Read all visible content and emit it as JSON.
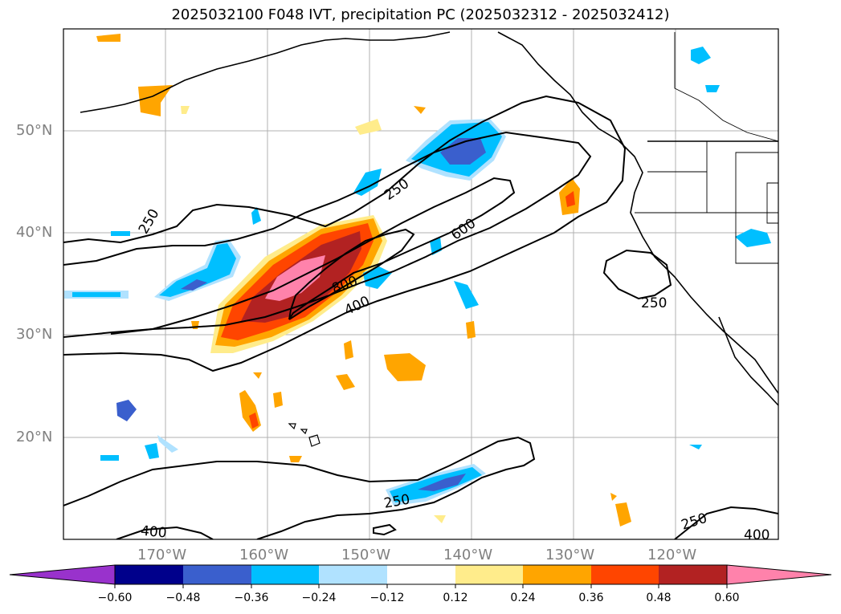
{
  "title": "2025032100 F048 IVT, precipitation PC (2025032312 - 2025032412)",
  "map": {
    "lat_labels": [
      "50°N",
      "40°N",
      "30°N",
      "20°N"
    ],
    "lon_labels": [
      "170°W",
      "160°W",
      "150°W",
      "140°W",
      "130°W",
      "120°W"
    ],
    "contour_labels": [
      "250",
      "250",
      "600",
      "800",
      "400",
      "250",
      "250",
      "250",
      "400",
      "400"
    ]
  },
  "colorbar": {
    "ticks": [
      "−0.60",
      "−0.48",
      "−0.36",
      "−0.24",
      "−0.12",
      "0.12",
      "0.24",
      "0.36",
      "0.48",
      "0.60"
    ],
    "colors": [
      "#9932cc",
      "#00008b",
      "#3a5fcd",
      "#00bfff",
      "#b0e2ff",
      "#ffffff",
      "#ffec8b",
      "#ffa500",
      "#ff4500",
      "#b22222",
      "#ff82ab"
    ]
  }
}
